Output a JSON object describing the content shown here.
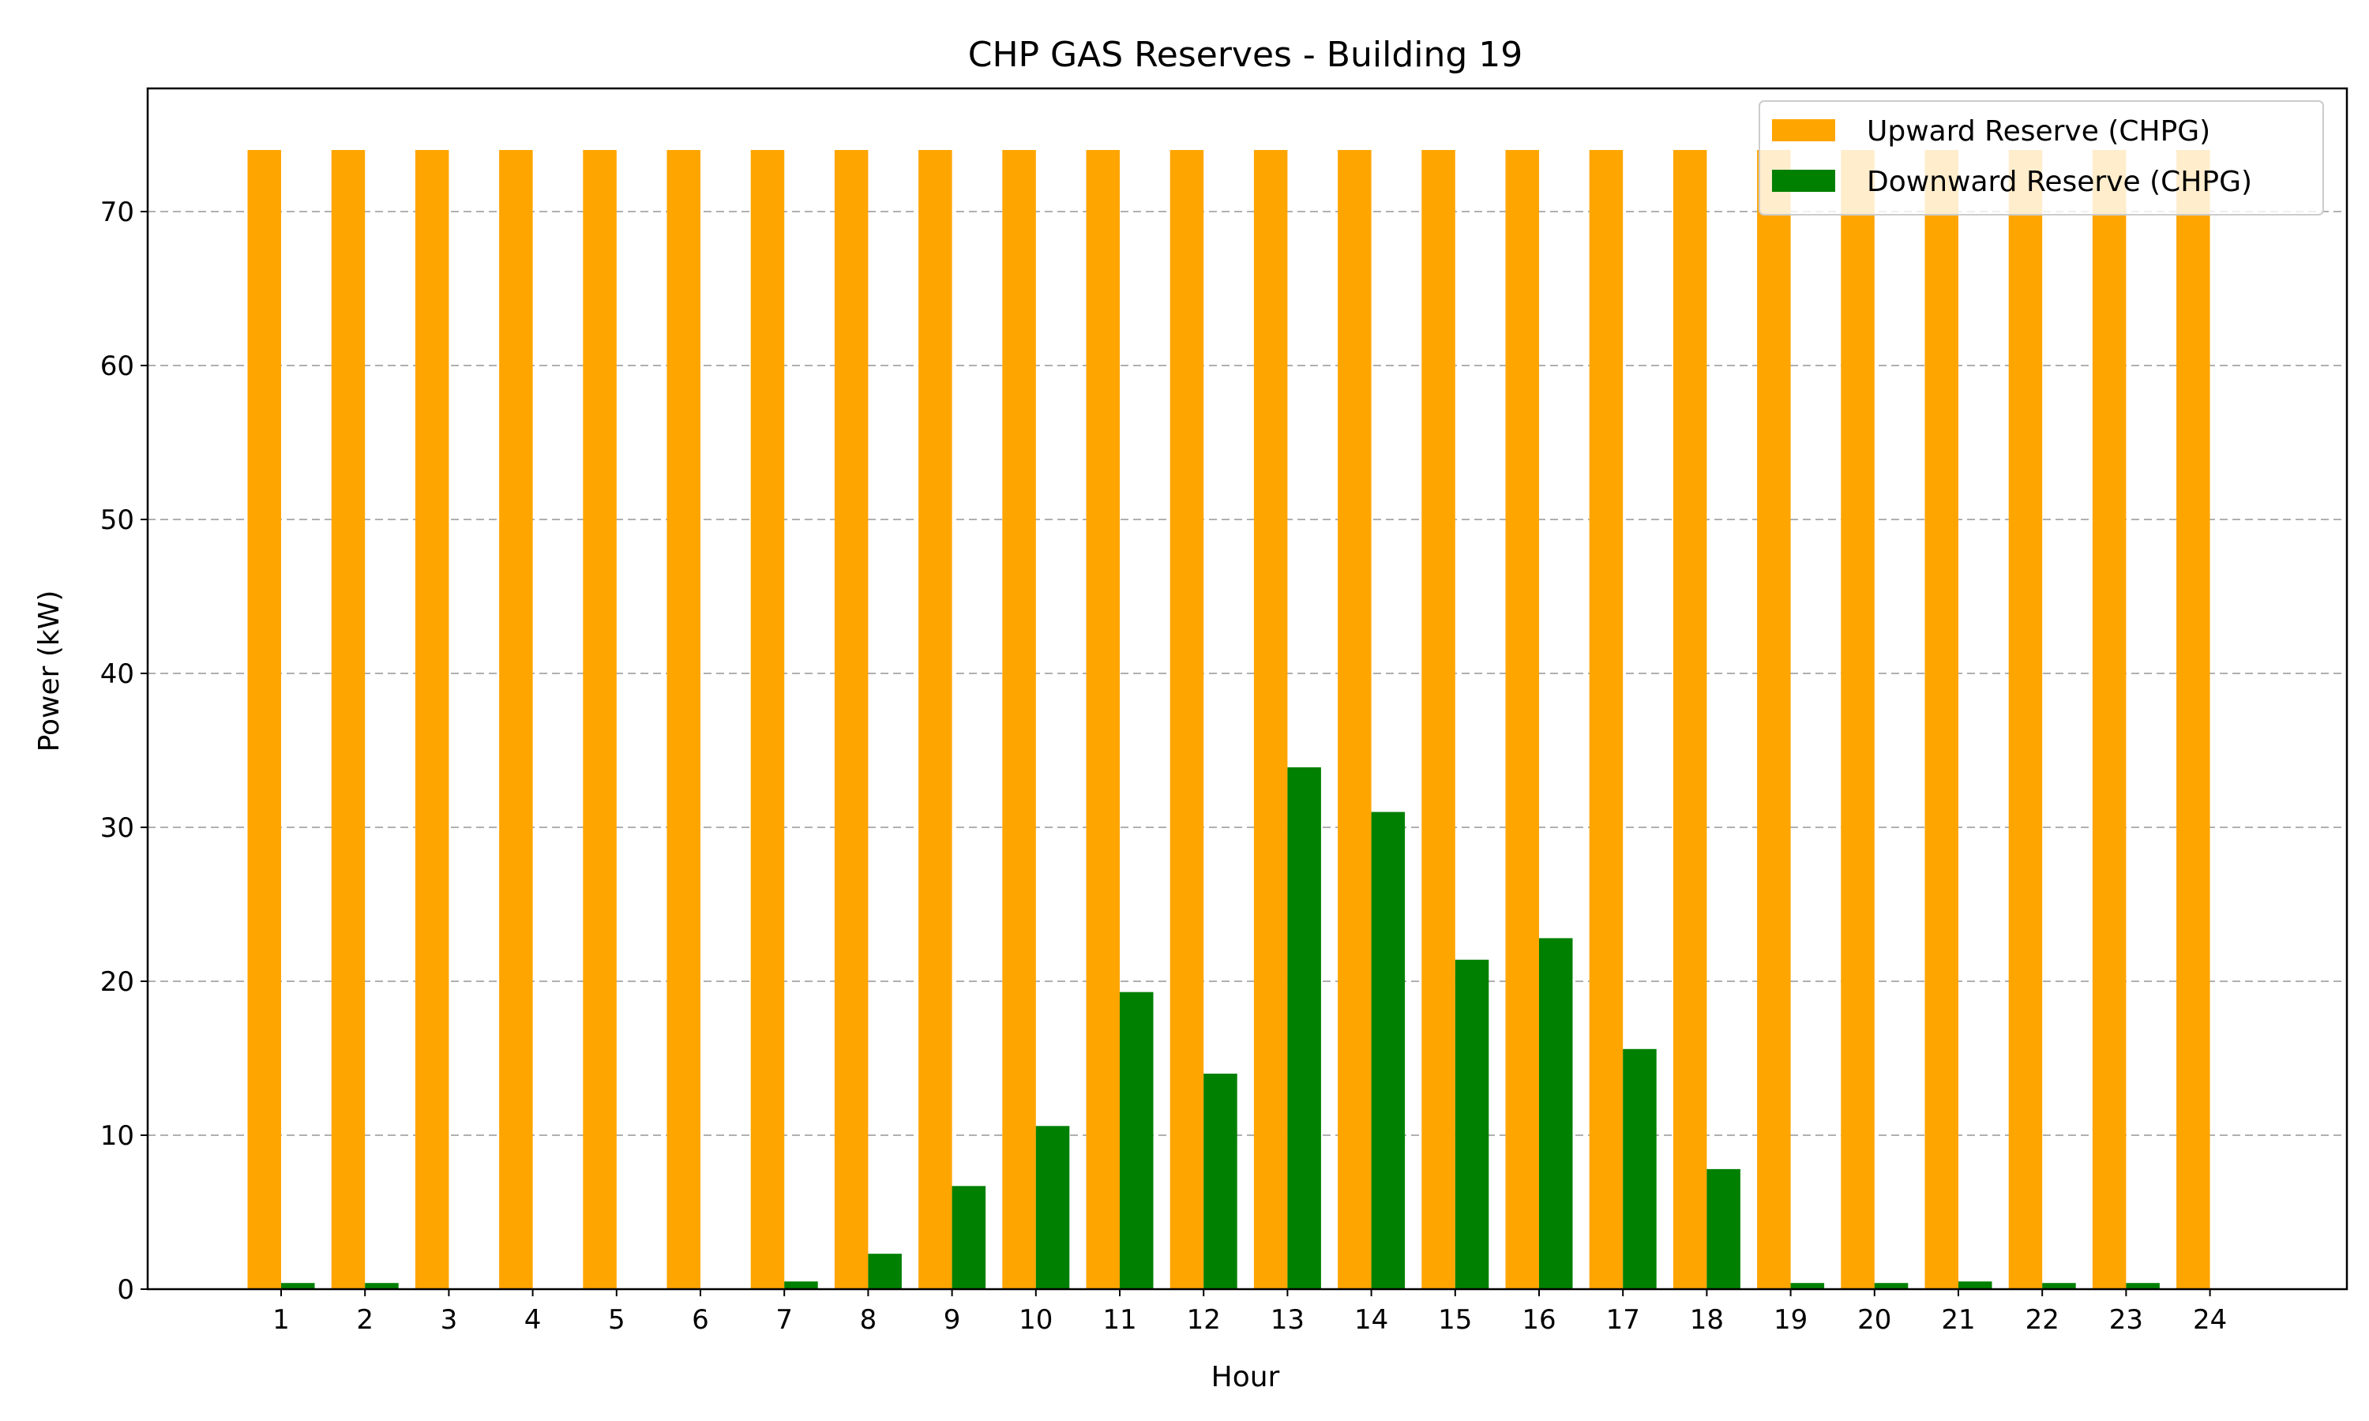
{
  "chart_data": {
    "type": "bar",
    "title": "CHP GAS Reserves - Building 19",
    "xlabel": "Hour",
    "ylabel": "Power (kW)",
    "categories": [
      "1",
      "2",
      "3",
      "4",
      "5",
      "6",
      "7",
      "8",
      "9",
      "10",
      "11",
      "12",
      "13",
      "14",
      "15",
      "16",
      "17",
      "18",
      "19",
      "20",
      "21",
      "22",
      "23",
      "24"
    ],
    "yticks": [
      "0",
      "10",
      "20",
      "30",
      "40",
      "50",
      "60",
      "70"
    ],
    "ylim": [
      0,
      78
    ],
    "grid": "y-dashed",
    "legend_position": "top-right",
    "series": [
      {
        "name": "Upward Reserve (CHPG)",
        "color": "#ffa500",
        "values": [
          74,
          74,
          74,
          74,
          74,
          74,
          74,
          74,
          74,
          74,
          74,
          74,
          74,
          74,
          74,
          74,
          74,
          74,
          74,
          74,
          74,
          74,
          74,
          74
        ]
      },
      {
        "name": "Downward Reserve (CHPG)",
        "color": "#008000",
        "values": [
          0.4,
          0.4,
          0,
          0,
          0,
          0,
          0.5,
          2.3,
          6.7,
          10.6,
          19.3,
          14.0,
          33.9,
          31.0,
          21.4,
          22.8,
          15.6,
          7.8,
          0.4,
          0.4,
          0.5,
          0.4,
          0.4,
          0
        ]
      }
    ]
  }
}
